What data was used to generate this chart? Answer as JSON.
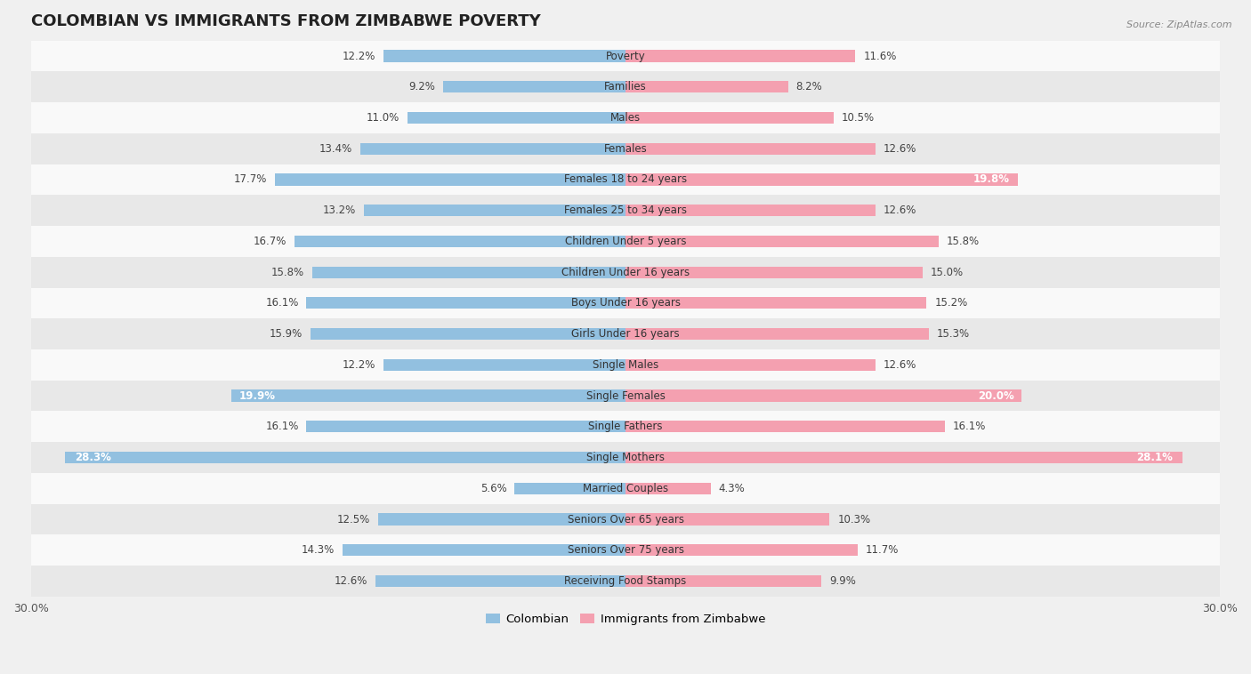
{
  "title": "COLOMBIAN VS IMMIGRANTS FROM ZIMBABWE POVERTY",
  "source": "Source: ZipAtlas.com",
  "categories": [
    "Poverty",
    "Families",
    "Males",
    "Females",
    "Females 18 to 24 years",
    "Females 25 to 34 years",
    "Children Under 5 years",
    "Children Under 16 years",
    "Boys Under 16 years",
    "Girls Under 16 years",
    "Single Males",
    "Single Females",
    "Single Fathers",
    "Single Mothers",
    "Married Couples",
    "Seniors Over 65 years",
    "Seniors Over 75 years",
    "Receiving Food Stamps"
  ],
  "colombian": [
    12.2,
    9.2,
    11.0,
    13.4,
    17.7,
    13.2,
    16.7,
    15.8,
    16.1,
    15.9,
    12.2,
    19.9,
    16.1,
    28.3,
    5.6,
    12.5,
    14.3,
    12.6
  ],
  "zimbabwe": [
    11.6,
    8.2,
    10.5,
    12.6,
    19.8,
    12.6,
    15.8,
    15.0,
    15.2,
    15.3,
    12.6,
    20.0,
    16.1,
    28.1,
    4.3,
    10.3,
    11.7,
    9.9
  ],
  "colombian_color": "#92c0e0",
  "zimbabwe_color": "#f4a0b0",
  "background_color": "#f0f0f0",
  "row_color_light": "#f9f9f9",
  "row_color_dark": "#e8e8e8",
  "axis_max": 30.0,
  "legend_colombian": "Colombian",
  "legend_zimbabwe": "Immigrants from Zimbabwe"
}
